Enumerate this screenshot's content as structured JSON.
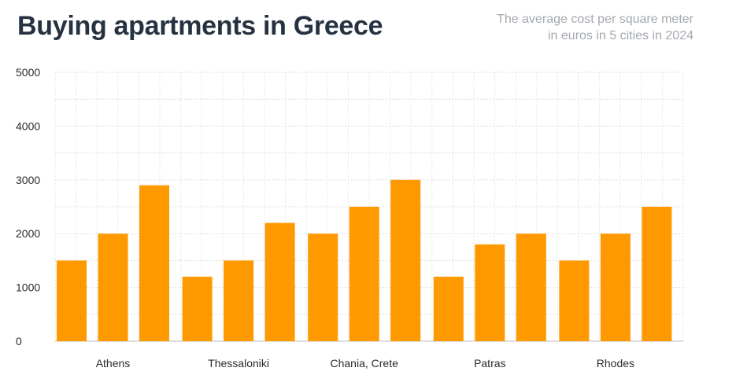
{
  "header": {
    "title": "Buying apartments in Greece",
    "subtitle_line1": "The average cost per square meter",
    "subtitle_line2": "in euros in 5 cities in 2024"
  },
  "chart_data": {
    "type": "bar",
    "title": "Buying apartments in Greece",
    "subtitle": "The average cost per square meter in euros in 5 cities in 2024",
    "categories": [
      "Athens",
      "Thessaloniki",
      "Chania, Crete",
      "Patras",
      "Rhodes"
    ],
    "series": [
      {
        "values": [
          1500,
          1200,
          2000,
          1200,
          1500
        ]
      },
      {
        "values": [
          2000,
          1500,
          2500,
          1800,
          2000
        ]
      },
      {
        "values": [
          2900,
          2200,
          3000,
          2000,
          2500
        ]
      }
    ],
    "yticks": [
      0,
      1000,
      2000,
      3000,
      4000,
      5000
    ],
    "ylim": [
      0,
      5000
    ],
    "grid": true,
    "legend": "none",
    "bar_color": "#ff9900"
  }
}
